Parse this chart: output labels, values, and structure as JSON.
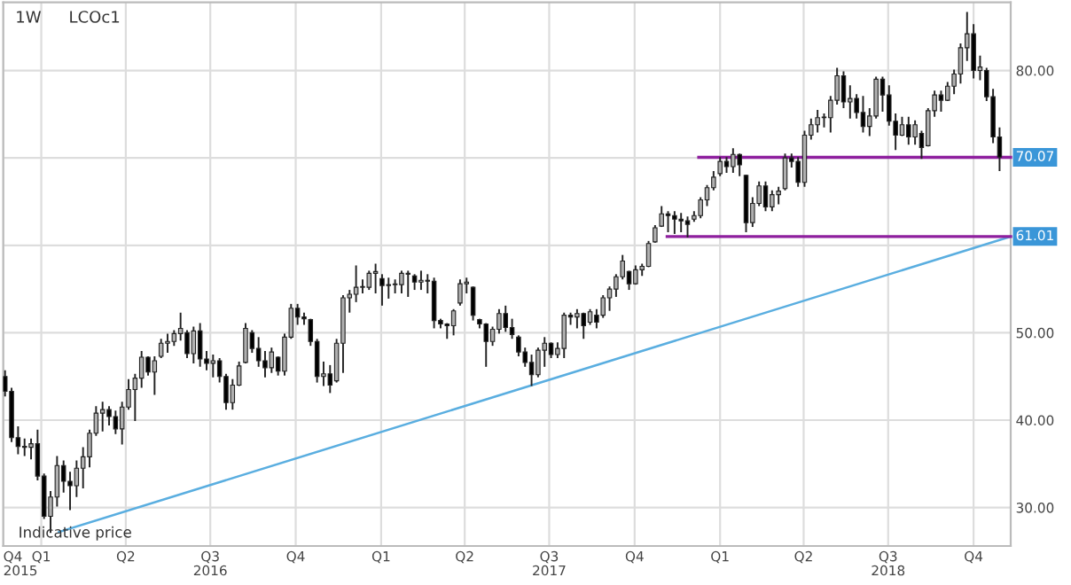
{
  "chart_data": {
    "type": "candlestick",
    "title": "LCOc1",
    "subtitle": "1W",
    "annotations": [
      "Indicative price"
    ],
    "xlim": [
      "2015-11-21",
      "2018-11-10"
    ],
    "ylim": [
      25.6,
      87.8
    ],
    "yticks": [
      {
        "value": 30,
        "label": "30.00"
      },
      {
        "value": 40,
        "label": "40.00"
      },
      {
        "value": 50,
        "label": "50.00"
      },
      {
        "value": 60,
        "label": null
      },
      {
        "value": 70,
        "label": null
      },
      {
        "value": 80,
        "label": "80.00"
      }
    ],
    "xticks": [
      {
        "value": "2015-11-21",
        "label": "Q4\n2015"
      },
      {
        "value": "2016-01-01",
        "label": "Q1"
      },
      {
        "value": "2016-04-01",
        "label": "Q2"
      },
      {
        "value": "2016-07-01",
        "label": "Q3\n2016"
      },
      {
        "value": "2016-10-01",
        "label": "Q4"
      },
      {
        "value": "2017-01-01",
        "label": "Q1"
      },
      {
        "value": "2017-04-01",
        "label": "Q2"
      },
      {
        "value": "2017-07-01",
        "label": "Q3\n2017"
      },
      {
        "value": "2017-10-01",
        "label": "Q4"
      },
      {
        "value": "2018-01-01",
        "label": "Q1"
      },
      {
        "value": "2018-04-01",
        "label": "Q2"
      },
      {
        "value": "2018-07-01",
        "label": "Q3\n2018"
      },
      {
        "value": "2018-10-01",
        "label": "Q4"
      }
    ],
    "grid": true,
    "series": [
      {
        "x": [
          "2015-11-23",
          "2015-11-30",
          "2015-12-07",
          "2015-12-14",
          "2015-12-21",
          "2015-12-28",
          "2016-01-04",
          "2016-01-11",
          "2016-01-18",
          "2016-01-25",
          "2016-02-01",
          "2016-02-08",
          "2016-02-15",
          "2016-02-22",
          "2016-02-29",
          "2016-03-07",
          "2016-03-14",
          "2016-03-21",
          "2016-03-28",
          "2016-04-04",
          "2016-04-11",
          "2016-04-18",
          "2016-04-25",
          "2016-05-02",
          "2016-05-09",
          "2016-05-16",
          "2016-05-23",
          "2016-05-30",
          "2016-06-06",
          "2016-06-13",
          "2016-06-20",
          "2016-06-27",
          "2016-07-04",
          "2016-07-11",
          "2016-07-18",
          "2016-07-25",
          "2016-08-01",
          "2016-08-08",
          "2016-08-15",
          "2016-08-22",
          "2016-08-29",
          "2016-09-05",
          "2016-09-12",
          "2016-09-19",
          "2016-09-26",
          "2016-10-03",
          "2016-10-10",
          "2016-10-17",
          "2016-10-24",
          "2016-10-31",
          "2016-11-07",
          "2016-11-14",
          "2016-11-21",
          "2016-11-28",
          "2016-12-05",
          "2016-12-12",
          "2016-12-19",
          "2016-12-26",
          "2017-01-02",
          "2017-01-09",
          "2017-01-16",
          "2017-01-23",
          "2017-01-30",
          "2017-02-06",
          "2017-02-13",
          "2017-02-20",
          "2017-02-27",
          "2017-03-06",
          "2017-03-13",
          "2017-03-20",
          "2017-03-27",
          "2017-04-03",
          "2017-04-10",
          "2017-04-17",
          "2017-04-24",
          "2017-05-01",
          "2017-05-08",
          "2017-05-15",
          "2017-05-22",
          "2017-05-29",
          "2017-06-05",
          "2017-06-12",
          "2017-06-19",
          "2017-06-26",
          "2017-07-03",
          "2017-07-10",
          "2017-07-17",
          "2017-07-24",
          "2017-07-31",
          "2017-08-07",
          "2017-08-14",
          "2017-08-21",
          "2017-08-28",
          "2017-09-04",
          "2017-09-11",
          "2017-09-18",
          "2017-09-25",
          "2017-10-02",
          "2017-10-09",
          "2017-10-16",
          "2017-10-23",
          "2017-10-30",
          "2017-11-06",
          "2017-11-13",
          "2017-11-20",
          "2017-11-27",
          "2017-12-04",
          "2017-12-11",
          "2017-12-18",
          "2017-12-25",
          "2018-01-01",
          "2018-01-08",
          "2018-01-15",
          "2018-01-22",
          "2018-01-29",
          "2018-02-05",
          "2018-02-12",
          "2018-02-19",
          "2018-02-26",
          "2018-03-05",
          "2018-03-12",
          "2018-03-19",
          "2018-03-26",
          "2018-04-02",
          "2018-04-09",
          "2018-04-16",
          "2018-04-23",
          "2018-04-30",
          "2018-05-07",
          "2018-05-14",
          "2018-05-21",
          "2018-05-28",
          "2018-06-04",
          "2018-06-11",
          "2018-06-18",
          "2018-06-25",
          "2018-07-02",
          "2018-07-09",
          "2018-07-16",
          "2018-07-23",
          "2018-07-30",
          "2018-08-06",
          "2018-08-13",
          "2018-08-20",
          "2018-08-27",
          "2018-09-03",
          "2018-09-10",
          "2018-09-17",
          "2018-09-24",
          "2018-10-01",
          "2018-10-08",
          "2018-10-15",
          "2018-10-22",
          "2018-10-29"
        ],
        "ohlc": [
          [
            45.0,
            45.6,
            42.8,
            43.3
          ],
          [
            43.3,
            43.6,
            37.6,
            38.0
          ],
          [
            38.0,
            39.2,
            36.2,
            37.0
          ],
          [
            37.0,
            37.8,
            36.0,
            36.9
          ],
          [
            36.9,
            37.8,
            35.6,
            37.3
          ],
          [
            37.3,
            38.8,
            33.2,
            33.6
          ],
          [
            33.6,
            33.8,
            28.8,
            29.0
          ],
          [
            29.0,
            31.8,
            27.2,
            31.2
          ],
          [
            31.2,
            35.8,
            30.2,
            34.8
          ],
          [
            34.8,
            35.3,
            31.8,
            33.0
          ],
          [
            33.0,
            34.0,
            29.8,
            32.5
          ],
          [
            32.5,
            35.3,
            31.3,
            34.5
          ],
          [
            34.5,
            36.8,
            32.3,
            35.8
          ],
          [
            35.8,
            38.8,
            34.7,
            38.5
          ],
          [
            38.5,
            41.5,
            38.3,
            40.8
          ],
          [
            40.8,
            42.0,
            38.8,
            41.2
          ],
          [
            41.2,
            41.5,
            39.5,
            40.4
          ],
          [
            40.4,
            41.0,
            38.5,
            39.0
          ],
          [
            39.0,
            42.0,
            37.3,
            41.5
          ],
          [
            41.5,
            44.6,
            41.3,
            43.5
          ],
          [
            43.5,
            45.2,
            40.0,
            44.8
          ],
          [
            44.8,
            47.8,
            43.8,
            47.2
          ],
          [
            47.2,
            47.2,
            45.2,
            45.5
          ],
          [
            45.5,
            47.2,
            43.0,
            46.8
          ],
          [
            47.3,
            49.2,
            47.2,
            48.8
          ],
          [
            48.8,
            49.8,
            47.8,
            49.0
          ],
          [
            49.0,
            50.2,
            48.6,
            49.9
          ],
          [
            49.9,
            52.2,
            49.2,
            50.5
          ],
          [
            50.0,
            50.2,
            47.2,
            47.6
          ],
          [
            47.6,
            50.6,
            46.6,
            50.2
          ],
          [
            50.2,
            51.0,
            46.2,
            47.0
          ],
          [
            47.0,
            47.8,
            45.8,
            46.5
          ],
          [
            46.5,
            47.4,
            45.0,
            46.8
          ],
          [
            46.8,
            47.0,
            44.4,
            45.0
          ],
          [
            45.0,
            45.2,
            41.3,
            42.0
          ],
          [
            42.0,
            44.6,
            41.3,
            44.0
          ],
          [
            44.0,
            46.6,
            44.0,
            46.2
          ],
          [
            46.6,
            51.0,
            46.6,
            50.5
          ],
          [
            50.0,
            50.2,
            47.8,
            48.2
          ],
          [
            48.2,
            49.4,
            46.2,
            46.8
          ],
          [
            46.8,
            47.8,
            45.0,
            46.0
          ],
          [
            46.0,
            48.2,
            45.5,
            47.8
          ],
          [
            47.2,
            47.2,
            45.2,
            45.6
          ],
          [
            45.6,
            49.8,
            45.2,
            49.5
          ],
          [
            49.5,
            53.2,
            49.4,
            52.8
          ],
          [
            52.8,
            53.2,
            51.0,
            51.8
          ],
          [
            51.8,
            52.2,
            51.0,
            51.6
          ],
          [
            51.5,
            51.5,
            48.6,
            49.0
          ],
          [
            49.0,
            49.2,
            44.4,
            45.0
          ],
          [
            45.0,
            46.6,
            44.0,
            45.3
          ],
          [
            45.3,
            46.2,
            43.2,
            44.0
          ],
          [
            44.5,
            49.2,
            44.4,
            48.8
          ],
          [
            48.8,
            54.2,
            45.5,
            54.0
          ],
          [
            54.0,
            54.8,
            52.4,
            54.4
          ],
          [
            54.4,
            57.6,
            53.6,
            55.2
          ],
          [
            55.2,
            56.0,
            54.6,
            55.2
          ],
          [
            55.2,
            57.0,
            55.0,
            56.8
          ],
          [
            56.8,
            57.8,
            54.6,
            57.0
          ],
          [
            56.2,
            56.6,
            53.2,
            55.4
          ],
          [
            55.4,
            56.2,
            54.0,
            55.5
          ],
          [
            55.5,
            56.0,
            54.6,
            55.5
          ],
          [
            55.5,
            57.0,
            54.6,
            56.8
          ],
          [
            56.8,
            57.0,
            54.2,
            56.7
          ],
          [
            56.5,
            56.6,
            55.0,
            55.8
          ],
          [
            55.8,
            57.0,
            55.0,
            56.0
          ],
          [
            56.0,
            56.6,
            54.6,
            55.9
          ],
          [
            55.9,
            56.2,
            50.6,
            51.4
          ],
          [
            51.4,
            51.5,
            50.6,
            51.0
          ],
          [
            51.0,
            51.0,
            49.4,
            50.8
          ],
          [
            50.8,
            52.6,
            49.8,
            52.5
          ],
          [
            53.4,
            56.0,
            53.2,
            55.6
          ],
          [
            55.6,
            56.2,
            54.6,
            55.8
          ],
          [
            55.2,
            55.2,
            51.5,
            52.0
          ],
          [
            51.5,
            51.5,
            50.6,
            51.0
          ],
          [
            51.0,
            51.0,
            46.2,
            49.0
          ],
          [
            49.0,
            50.6,
            48.6,
            50.4
          ],
          [
            50.4,
            52.6,
            50.0,
            52.2
          ],
          [
            52.2,
            53.0,
            50.2,
            50.6
          ],
          [
            50.6,
            51.5,
            49.4,
            49.8
          ],
          [
            49.5,
            49.6,
            47.4,
            47.8
          ],
          [
            47.8,
            48.2,
            46.2,
            46.6
          ],
          [
            46.6,
            47.4,
            44.0,
            45.2
          ],
          [
            45.2,
            48.2,
            45.0,
            48.0
          ],
          [
            48.0,
            49.4,
            46.2,
            48.8
          ],
          [
            48.8,
            48.8,
            47.2,
            47.5
          ],
          [
            47.5,
            48.8,
            47.2,
            48.2
          ],
          [
            48.2,
            52.2,
            47.2,
            52.0
          ],
          [
            52.0,
            52.2,
            51.0,
            51.8
          ],
          [
            51.8,
            52.6,
            50.6,
            52.2
          ],
          [
            52.2,
            52.2,
            49.4,
            50.8
          ],
          [
            51.2,
            52.6,
            51.0,
            52.4
          ],
          [
            52.0,
            52.6,
            50.6,
            51.2
          ],
          [
            52.0,
            54.2,
            51.8,
            54.0
          ],
          [
            54.0,
            55.2,
            52.6,
            55.0
          ],
          [
            55.0,
            56.6,
            54.2,
            56.4
          ],
          [
            56.4,
            58.8,
            56.2,
            58.2
          ],
          [
            57.0,
            57.0,
            55.0,
            55.6
          ],
          [
            55.6,
            57.6,
            55.6,
            57.2
          ],
          [
            57.2,
            57.8,
            56.6,
            57.6
          ],
          [
            57.6,
            60.4,
            57.6,
            60.2
          ],
          [
            60.4,
            62.2,
            60.4,
            62.0
          ],
          [
            62.2,
            64.4,
            62.2,
            63.6
          ],
          [
            63.6,
            63.8,
            61.6,
            63.4
          ],
          [
            63.4,
            63.8,
            61.4,
            63.0
          ],
          [
            63.0,
            63.6,
            61.6,
            62.8
          ],
          [
            62.8,
            63.2,
            61.0,
            62.4
          ],
          [
            63.0,
            63.8,
            62.8,
            63.4
          ],
          [
            63.4,
            65.4,
            63.2,
            65.2
          ],
          [
            65.2,
            66.8,
            64.6,
            66.6
          ],
          [
            66.6,
            68.4,
            66.4,
            67.8
          ],
          [
            68.2,
            70.0,
            68.0,
            69.6
          ],
          [
            69.6,
            70.0,
            68.4,
            69.0
          ],
          [
            69.0,
            71.0,
            68.4,
            70.4
          ],
          [
            70.4,
            70.4,
            68.0,
            69.2
          ],
          [
            68.0,
            68.0,
            61.6,
            62.6
          ],
          [
            62.6,
            65.4,
            62.2,
            64.8
          ],
          [
            64.8,
            67.2,
            64.6,
            66.8
          ],
          [
            66.8,
            67.2,
            64.0,
            64.4
          ],
          [
            64.4,
            66.2,
            64.0,
            65.8
          ],
          [
            65.8,
            66.6,
            64.8,
            66.2
          ],
          [
            66.5,
            70.4,
            66.4,
            70.0
          ],
          [
            70.0,
            70.4,
            69.0,
            69.6
          ],
          [
            69.6,
            70.0,
            66.8,
            67.2
          ],
          [
            67.2,
            73.0,
            66.8,
            72.6
          ],
          [
            72.6,
            74.4,
            72.2,
            73.8
          ],
          [
            73.8,
            75.4,
            73.0,
            74.6
          ],
          [
            74.6,
            75.0,
            73.6,
            74.6
          ],
          [
            74.6,
            77.0,
            73.0,
            76.6
          ],
          [
            76.6,
            80.2,
            76.2,
            79.4
          ],
          [
            79.4,
            79.8,
            75.8,
            76.4
          ],
          [
            76.4,
            78.2,
            74.6,
            76.8
          ],
          [
            76.8,
            77.2,
            74.6,
            75.2
          ],
          [
            75.2,
            77.0,
            73.0,
            73.6
          ],
          [
            73.6,
            75.6,
            72.6,
            74.8
          ],
          [
            74.8,
            79.2,
            74.6,
            79.0
          ],
          [
            79.0,
            79.2,
            75.4,
            77.2
          ],
          [
            77.2,
            78.2,
            73.8,
            74.2
          ],
          [
            74.2,
            75.0,
            71.0,
            72.6
          ],
          [
            72.6,
            74.6,
            72.6,
            73.8
          ],
          [
            73.8,
            74.6,
            71.6,
            72.4
          ],
          [
            72.4,
            74.2,
            71.6,
            73.8
          ],
          [
            72.8,
            73.0,
            70.0,
            71.2
          ],
          [
            71.4,
            75.6,
            71.4,
            75.4
          ],
          [
            75.4,
            77.6,
            74.8,
            77.2
          ],
          [
            77.2,
            77.6,
            75.4,
            76.6
          ],
          [
            76.6,
            78.6,
            76.6,
            78.2
          ],
          [
            78.2,
            80.0,
            77.4,
            79.6
          ],
          [
            79.6,
            83.0,
            78.6,
            82.6
          ],
          [
            82.6,
            86.6,
            81.2,
            84.2
          ],
          [
            84.2,
            85.2,
            79.2,
            80.0
          ],
          [
            80.0,
            81.6,
            79.0,
            80.4
          ],
          [
            80.0,
            80.2,
            76.6,
            77.0
          ],
          [
            77.0,
            77.8,
            71.8,
            72.4
          ],
          [
            72.4,
            73.4,
            68.6,
            70.1
          ]
        ]
      },
      {
        "type": "line",
        "color": "#5aaee0",
        "x": [
          "2016-01-20",
          "2018-11-10"
        ],
        "values": [
          27.2,
          61.01
        ]
      },
      {
        "type": "line",
        "color": "#8e1f9e",
        "x": [
          "2017-12-09",
          "2018-11-10"
        ],
        "values": [
          70.07,
          70.07
        ],
        "value_labels": [
          null,
          "70.07"
        ]
      },
      {
        "type": "line",
        "color": "#8e1f9e",
        "x": [
          "2017-11-05",
          "2018-11-10"
        ],
        "values": [
          61.01,
          61.01
        ],
        "value_labels": [
          null,
          "61.01"
        ]
      }
    ]
  }
}
